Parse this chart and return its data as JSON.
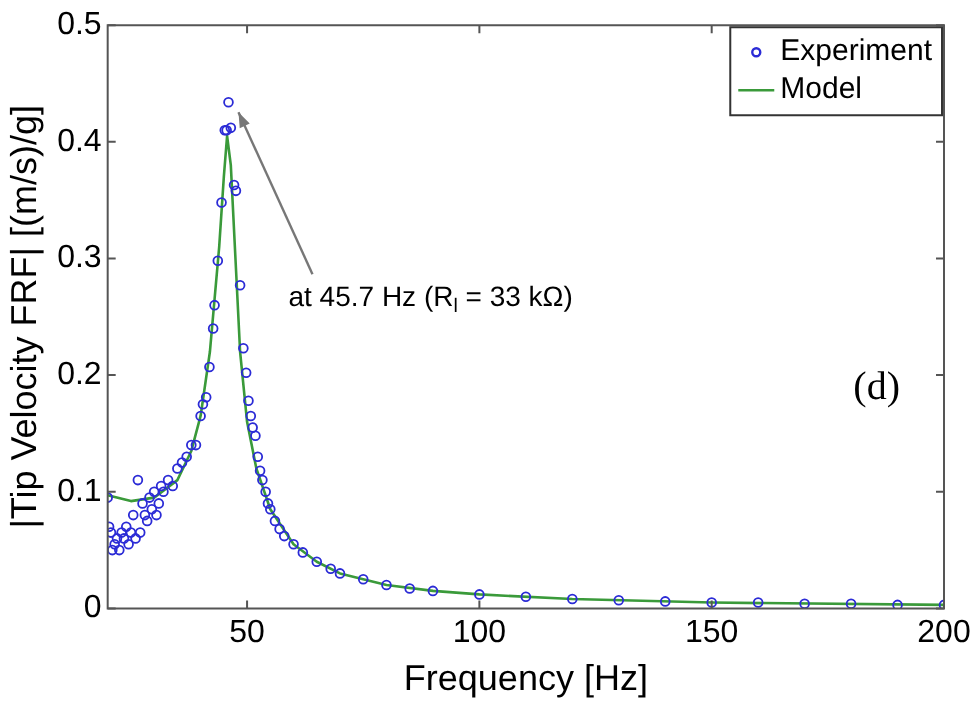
{
  "chart_data": {
    "type": "scatter",
    "xlabel": "Frequency [Hz]",
    "ylabel": "|Tip Velocity FRF| [(m/s)/g]",
    "xlim": [
      20,
      200
    ],
    "xticks": [
      50,
      100,
      150,
      200
    ],
    "ylim": [
      0,
      0.5
    ],
    "yticks": [
      0,
      0.1,
      0.2,
      0.3,
      0.4,
      0.5
    ],
    "grid": false,
    "legend": "top right",
    "annotations": [
      {
        "text": "at 45.7 Hz (R$_{l}$ = 33 kΩ)",
        "x": 46,
        "y": 0.434
      },
      "(d)"
    ],
    "series": [
      {
        "name": "Experiment",
        "marker": "circle",
        "color": "#2b2bd6",
        "x": [
          20,
          20.3,
          20.7,
          21,
          21.5,
          22,
          22.5,
          23,
          23.5,
          24,
          24.5,
          25,
          25.5,
          26,
          26.5,
          27,
          27.5,
          28,
          28.5,
          29,
          29.5,
          30,
          30.5,
          31,
          31.5,
          32,
          33,
          34,
          35,
          36,
          37,
          38,
          39,
          40,
          40.5,
          41.2,
          41.9,
          42.7,
          43,
          43.7,
          44.5,
          45.2,
          45.6,
          46,
          46.5,
          47.2,
          47.6,
          48.5,
          49.2,
          49.8,
          50.3,
          50.8,
          51.2,
          51.8,
          52.3,
          52.8,
          53.3,
          54,
          54.5,
          55,
          56,
          57,
          58,
          60,
          62,
          65,
          68,
          70,
          75,
          80,
          85,
          90,
          100,
          110,
          120,
          130,
          140,
          150,
          160,
          170,
          180,
          190,
          200
        ],
        "values": [
          0.095,
          0.07,
          0.065,
          0.05,
          0.055,
          0.06,
          0.05,
          0.065,
          0.06,
          0.07,
          0.055,
          0.065,
          0.08,
          0.06,
          0.11,
          0.065,
          0.09,
          0.08,
          0.075,
          0.095,
          0.085,
          0.1,
          0.08,
          0.09,
          0.105,
          0.1,
          0.11,
          0.105,
          0.12,
          0.125,
          0.13,
          0.14,
          0.14,
          0.165,
          0.175,
          0.181,
          0.207,
          0.24,
          0.26,
          0.298,
          0.348,
          0.41,
          0.41,
          0.434,
          0.412,
          0.363,
          0.358,
          0.277,
          0.223,
          0.202,
          0.178,
          0.165,
          0.155,
          0.148,
          0.13,
          0.118,
          0.11,
          0.1,
          0.09,
          0.085,
          0.075,
          0.068,
          0.062,
          0.055,
          0.048,
          0.04,
          0.034,
          0.03,
          0.025,
          0.02,
          0.017,
          0.015,
          0.012,
          0.01,
          0.008,
          0.007,
          0.006,
          0.005,
          0.005,
          0.004,
          0.004,
          0.003,
          0.003
        ]
      },
      {
        "name": "Model",
        "type": "line",
        "marker": "none",
        "color": "#3a9a3a",
        "x": [
          20,
          25,
          30,
          35,
          38,
          40,
          42,
          44,
          45,
          45.7,
          46.5,
          47.5,
          48.5,
          50,
          52,
          55,
          60,
          65,
          70,
          80,
          90,
          100,
          120,
          150,
          200
        ],
        "values": [
          0.097,
          0.092,
          0.095,
          0.11,
          0.135,
          0.165,
          0.22,
          0.31,
          0.37,
          0.405,
          0.38,
          0.3,
          0.22,
          0.16,
          0.12,
          0.085,
          0.055,
          0.04,
          0.03,
          0.02,
          0.015,
          0.012,
          0.008,
          0.005,
          0.003
        ]
      }
    ]
  }
}
